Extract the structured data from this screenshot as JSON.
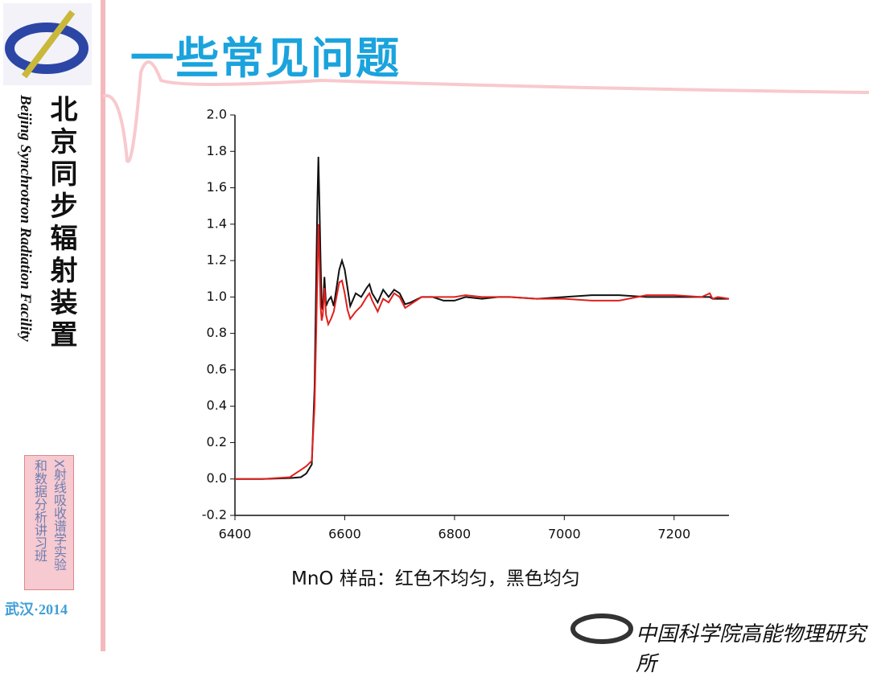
{
  "slide": {
    "title": "一些常见问题",
    "org_cn": "北京同步辐射装置",
    "org_en": "Beijing Synchrotron Radiation Facility",
    "course": [
      "X射线吸收谱学实验",
      "和数据分析讲习班"
    ],
    "place": "武汉·2014",
    "institute": "中国科学院高能物理研究所",
    "caption": "MnO 样品：红色不均匀，黑色均匀"
  },
  "chart_data": {
    "type": "line",
    "x": [
      6400,
      6450,
      6500,
      6520,
      6530,
      6540,
      6545,
      6548,
      6550,
      6552,
      6554,
      6556,
      6558,
      6560,
      6563,
      6566,
      6570,
      6575,
      6580,
      6585,
      6590,
      6595,
      6600,
      6605,
      6610,
      6620,
      6630,
      6640,
      6645,
      6650,
      6660,
      6670,
      6680,
      6690,
      6700,
      6710,
      6720,
      6740,
      6760,
      6780,
      6800,
      6820,
      6850,
      6880,
      6900,
      6950,
      7000,
      7050,
      7100,
      7150,
      7200,
      7250,
      7265,
      7270,
      7280,
      7300
    ],
    "series": [
      {
        "color": "#111111",
        "values": [
          0,
          0,
          0.005,
          0.01,
          0.03,
          0.08,
          0.5,
          1.1,
          1.5,
          1.77,
          1.5,
          1.2,
          0.95,
          0.93,
          1.11,
          0.95,
          0.98,
          1.0,
          0.95,
          1.05,
          1.15,
          1.2,
          1.15,
          1.05,
          0.95,
          1.02,
          1.0,
          1.05,
          1.07,
          1.02,
          0.97,
          1.04,
          1.0,
          1.04,
          1.02,
          0.96,
          0.97,
          1.0,
          1.0,
          0.98,
          0.98,
          1.0,
          0.99,
          1.0,
          1.0,
          0.99,
          1.0,
          1.01,
          1.01,
          1.0,
          1.0,
          1.0,
          1.0,
          0.99,
          0.99,
          0.99
        ]
      },
      {
        "color": "#e0201c",
        "values": [
          0,
          0,
          0.01,
          0.05,
          0.07,
          0.1,
          0.4,
          0.8,
          1.1,
          1.4,
          1.2,
          0.95,
          0.87,
          0.9,
          1.05,
          0.9,
          0.85,
          0.88,
          0.92,
          1.0,
          1.08,
          1.09,
          1.02,
          0.93,
          0.88,
          0.92,
          0.95,
          1.0,
          1.02,
          0.98,
          0.92,
          0.99,
          0.97,
          1.02,
          1.0,
          0.94,
          0.96,
          1.0,
          1.0,
          1.0,
          1.0,
          1.01,
          1.0,
          1.0,
          1.0,
          0.99,
          0.99,
          0.98,
          0.98,
          1.01,
          1.01,
          1.0,
          1.02,
          0.99,
          1.0,
          0.99
        ]
      }
    ],
    "xlim": [
      6400,
      7300
    ],
    "xticks": [
      6400,
      6600,
      6800,
      7000,
      7200
    ],
    "ylim": [
      -0.2,
      2.0
    ],
    "yticks": [
      -0.2,
      {
        "value": 0,
        "label": "0.0"
      },
      0.2,
      0.4,
      0.6,
      0.8,
      {
        "value": 1,
        "label": "1.0"
      },
      1.2,
      1.4,
      1.6,
      1.8,
      {
        "value": 2,
        "label": "2.0"
      }
    ]
  }
}
